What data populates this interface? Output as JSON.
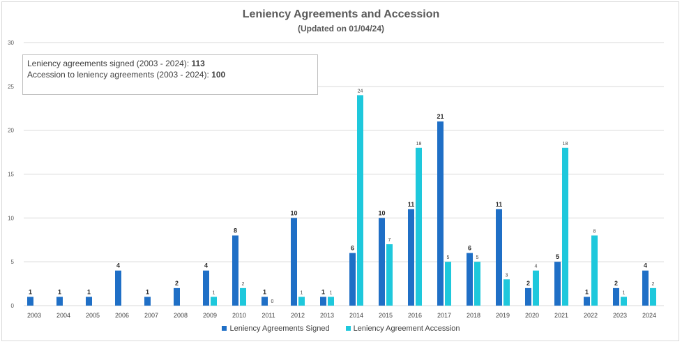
{
  "title": "Leniency Agreements and Accession",
  "subtitle": "(Updated on 01/04/24)",
  "info": {
    "line1_label": "Leniency agreements signed (2003 - 2024): ",
    "line1_value": "113",
    "line2_label": "Accession to leniency agreements (2003 - 2024): ",
    "line2_value": "100"
  },
  "colors": {
    "signed": "#1f6fc6",
    "accession": "#1ec8dc",
    "grid": "#d9d9d9",
    "axis_text": "#595959"
  },
  "chart_data": {
    "type": "bar",
    "title": "Leniency Agreements and Accession",
    "subtitle": "(Updated on 01/04/24)",
    "categories": [
      "2003",
      "2004",
      "2005",
      "2006",
      "2007",
      "2008",
      "2009",
      "2010",
      "2011",
      "2012",
      "2013",
      "2014",
      "2015",
      "2016",
      "2017",
      "2018",
      "2019",
      "2020",
      "2021",
      "2022",
      "2023",
      "2024"
    ],
    "yticks": [
      0,
      5,
      10,
      15,
      20,
      25,
      30
    ],
    "ylim": [
      0,
      30
    ],
    "grid": true,
    "legend_position": "bottom",
    "series": [
      {
        "name": "Leniency Agreements Signed",
        "values": [
          1,
          1,
          1,
          4,
          1,
          2,
          4,
          8,
          1,
          10,
          1,
          6,
          10,
          11,
          21,
          6,
          11,
          2,
          5,
          1,
          2,
          4
        ]
      },
      {
        "name": "Leniency Agreement Accession",
        "values": [
          null,
          null,
          null,
          null,
          null,
          null,
          1,
          2,
          0,
          1,
          1,
          24,
          7,
          18,
          5,
          5,
          3,
          4,
          18,
          8,
          1,
          2
        ]
      }
    ]
  }
}
